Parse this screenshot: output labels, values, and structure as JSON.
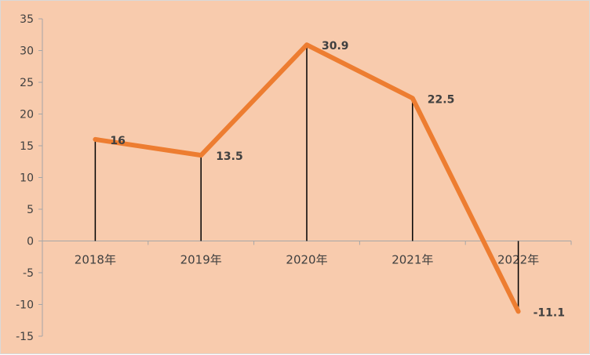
{
  "chart_data": {
    "type": "line",
    "categories": [
      "2018年",
      "2019年",
      "2020年",
      "2021年",
      "2022年"
    ],
    "series": [
      {
        "values": [
          16,
          13.5,
          30.9,
          22.5,
          -11.1
        ]
      }
    ],
    "data_labels": [
      "16",
      "13.5",
      "30.9",
      "22.5",
      "-11.1"
    ],
    "ylim": [
      -15,
      35
    ],
    "yticks": [
      35,
      30,
      25,
      20,
      15,
      10,
      5,
      0,
      -5,
      -10,
      -15
    ],
    "drop_lines": true,
    "grid": false,
    "legend": "none",
    "colors": {
      "line": "#ed7d31",
      "background": "#f8cbad",
      "axis": "#a6a6a6",
      "drop_line": "#000000",
      "text": "#404040"
    }
  }
}
